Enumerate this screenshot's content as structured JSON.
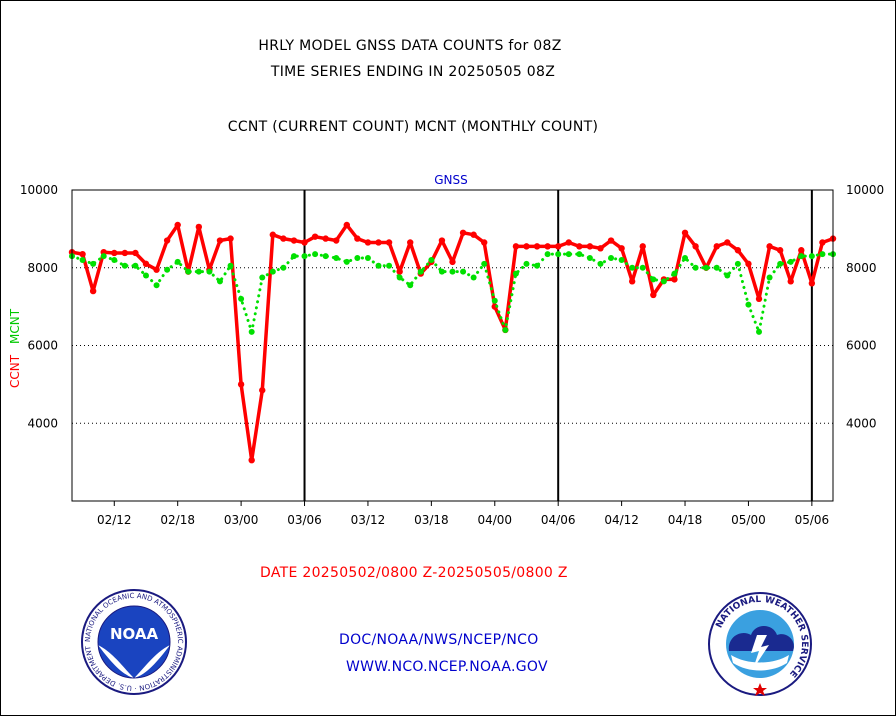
{
  "header": {
    "title_line1": "HRLY MODEL GNSS DATA COUNTS for 08Z",
    "title_line2": "TIME SERIES ENDING IN 20250505 08Z",
    "subtitle": "CCNT (CURRENT COUNT) MCNT (MONTHLY COUNT)"
  },
  "footer": {
    "date_range": "DATE 20250502/0800 Z-20250505/0800 Z",
    "org_line": "DOC/NOAA/NWS/NCEP/NCO",
    "url_line": "WWW.NCO.NCEP.NOAA.GOV"
  },
  "logos": {
    "left": {
      "icon": "noaa-logo-icon",
      "text": "NOAA",
      "ring_text": "NATIONAL OCEANIC AND ATMOSPHERIC ADMINISTRATION · U.S. DEPARTMENT OF COMMERCE"
    },
    "right": {
      "icon": "nws-logo-icon",
      "ring_text": "NATIONAL WEATHER SERVICE"
    }
  },
  "colors": {
    "ccnt": "#ff0000",
    "mcnt": "#00e000",
    "footer_blue": "#0000cc",
    "date_red": "#ff0000"
  },
  "chart_data": {
    "type": "line",
    "title": "GNSS",
    "ylabel_left_ccnt": "CCNT",
    "ylabel_left_mcnt": "MCNT",
    "ylim": [
      2000,
      10000
    ],
    "yticks": [
      4000,
      6000,
      8000,
      10000
    ],
    "ytick_labels": [
      "4000",
      "6000",
      "8000",
      "10000"
    ],
    "grid": "horizontal dotted at y ticks",
    "x_tick_labels": [
      "02/12",
      "02/18",
      "03/00",
      "03/06",
      "03/12",
      "03/18",
      "04/00",
      "04/06",
      "04/12",
      "04/18",
      "05/00",
      "05/06"
    ],
    "x_tick_hours": [
      12,
      18,
      24,
      30,
      36,
      42,
      48,
      54,
      60,
      66,
      72,
      78
    ],
    "x_range_hours": [
      8,
      80
    ],
    "day_separators_hours": [
      30,
      54,
      78
    ],
    "series": [
      {
        "name": "CCNT",
        "color": "#ff0000",
        "style": "solid",
        "x": [
          8,
          9,
          10,
          11,
          12,
          13,
          14,
          15,
          16,
          17,
          18,
          19,
          20,
          21,
          22,
          23,
          24,
          25,
          26,
          27,
          28,
          29,
          30,
          31,
          32,
          33,
          34,
          35,
          36,
          37,
          38,
          39,
          40,
          41,
          42,
          43,
          44,
          45,
          46,
          47,
          48,
          49,
          50,
          51,
          52,
          53,
          54,
          55,
          56,
          57,
          58,
          59,
          60,
          61,
          62,
          63,
          64,
          65,
          66,
          67,
          68,
          69,
          70,
          71,
          72,
          73,
          74,
          75,
          76,
          77,
          78,
          79,
          80
        ],
        "values": [
          8400,
          8350,
          7400,
          8400,
          8380,
          8380,
          8380,
          8100,
          7950,
          8700,
          9100,
          7900,
          9050,
          7950,
          8700,
          8750,
          5000,
          3050,
          4850,
          8850,
          8750,
          8700,
          8650,
          8800,
          8750,
          8700,
          9100,
          8750,
          8650,
          8650,
          8650,
          7900,
          8650,
          7850,
          8150,
          8700,
          8150,
          8900,
          8850,
          8650,
          7000,
          6400,
          8550,
          8550,
          8550,
          8550,
          8550,
          8650,
          8550,
          8550,
          8500,
          8700,
          8500,
          7650,
          8550,
          7300,
          7700,
          7700,
          8900,
          8550,
          8000,
          8550,
          8650,
          8450,
          8100,
          7200,
          8550,
          8450,
          7650,
          8450,
          7600,
          8650,
          8750
        ]
      },
      {
        "name": "MCNT",
        "color": "#00e000",
        "style": "dotted",
        "x": [
          8,
          9,
          10,
          11,
          12,
          13,
          14,
          15,
          16,
          17,
          18,
          19,
          20,
          21,
          22,
          23,
          24,
          25,
          26,
          27,
          28,
          29,
          30,
          31,
          32,
          33,
          34,
          35,
          36,
          37,
          38,
          39,
          40,
          41,
          42,
          43,
          44,
          45,
          46,
          47,
          48,
          49,
          50,
          51,
          52,
          53,
          54,
          55,
          56,
          57,
          58,
          59,
          60,
          61,
          62,
          63,
          64,
          65,
          66,
          67,
          68,
          69,
          70,
          71,
          72,
          73,
          74,
          75,
          76,
          77,
          78,
          79,
          80
        ],
        "values": [
          8300,
          8200,
          8100,
          8300,
          8200,
          8050,
          8050,
          7800,
          7550,
          7950,
          8150,
          7900,
          7900,
          7900,
          7650,
          8050,
          7200,
          6350,
          7750,
          7900,
          8000,
          8300,
          8300,
          8350,
          8300,
          8250,
          8150,
          8250,
          8250,
          8050,
          8050,
          7750,
          7550,
          7900,
          8200,
          7900,
          7900,
          7900,
          7750,
          8100,
          7150,
          6400,
          7850,
          8100,
          8050,
          8350,
          8350,
          8350,
          8350,
          8250,
          8100,
          8250,
          8200,
          8000,
          8000,
          7700,
          7650,
          7850,
          8250,
          8000,
          8000,
          8000,
          7800,
          8100,
          7050,
          6350,
          7750,
          8100,
          8150,
          8300,
          8300,
          8350,
          8350
        ]
      }
    ]
  }
}
